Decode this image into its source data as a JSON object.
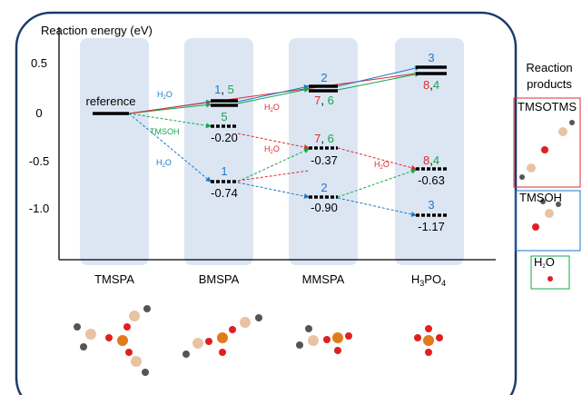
{
  "y_axis": {
    "title": "Reaction energy (eV)",
    "ticks": [
      "0.5",
      "0",
      "-0.5",
      "-1.0"
    ]
  },
  "columns": [
    [
      "TMSPA"
    ],
    [
      "BMSPA"
    ],
    [
      "MMSPA"
    ],
    [
      "H",
      "3",
      "PO",
      "4"
    ]
  ],
  "reference": "reference",
  "levels": [
    {
      "tags": [
        "1",
        ", ",
        "5"
      ]
    },
    {
      "tags": [
        "5"
      ],
      "energy": "-0.20"
    },
    {
      "tags": [
        "1"
      ],
      "energy": "-0.74"
    },
    {
      "tags": [
        "2"
      ],
      "below": [
        "7",
        ", ",
        "6"
      ]
    },
    {
      "tags": [
        "7",
        ", ",
        "6"
      ],
      "energy": "-0.37"
    },
    {
      "tags": [
        "2"
      ],
      "energy": "-0.90"
    },
    {
      "tags": [
        "3"
      ],
      "below": [
        "8",
        ",",
        "4"
      ]
    },
    {
      "tags": [
        "8",
        ",",
        "4"
      ],
      "energy": "-0.63"
    },
    {
      "tags": [
        "3"
      ],
      "energy": "-1.17"
    }
  ],
  "annotations": [
    [
      "H",
      "2",
      "O"
    ],
    [
      "TMSOH"
    ],
    [
      "H",
      "2",
      "O"
    ],
    [
      "H",
      "2",
      "O"
    ],
    [
      "H",
      "2",
      "O"
    ],
    [
      "H",
      "2",
      "O"
    ]
  ],
  "products": {
    "title": [
      "Reaction",
      "products"
    ],
    "boxes": [
      [
        "TMSOTMS"
      ],
      [
        "TMSOH"
      ],
      [
        "H",
        "2",
        "O"
      ]
    ]
  }
}
